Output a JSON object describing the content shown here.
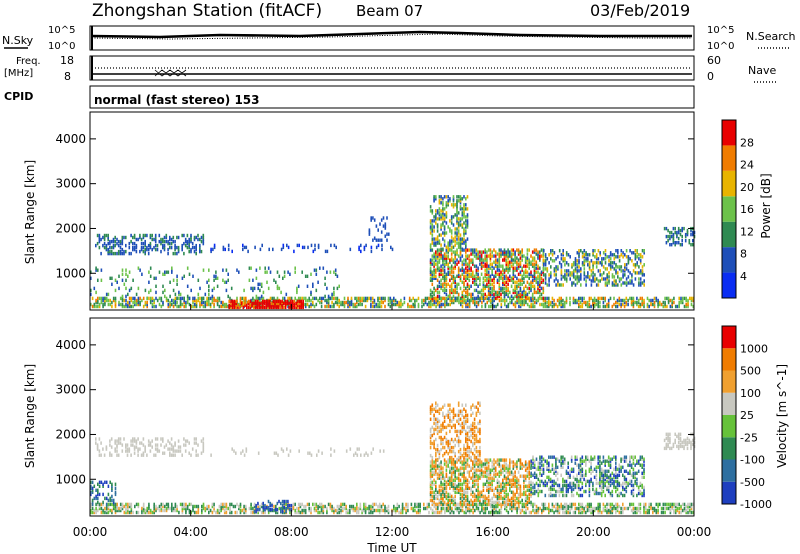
{
  "header": {
    "station": "Zhongshan Station (fitACF)",
    "beam": "Beam 07",
    "date": "03/Feb/2019"
  },
  "top_panels": {
    "sky_label": "N.Sky",
    "search_label": "N.Search",
    "sky_top": "10^5",
    "sky_bottom": "10^0",
    "search_top": "10^5",
    "search_bottom": "10^0",
    "freq_label_1": "Freq.",
    "freq_label_2": "[MHz]",
    "freq_top": "18",
    "freq_bottom": "8",
    "nave_label": "Nave",
    "nave_top": "60",
    "nave_bottom": "0",
    "cpid_label": "CPID",
    "cpid_value": "normal (fast stereo) 153"
  },
  "chart_data": [
    {
      "type": "heatmap",
      "ylabel": "Slant Range [km]",
      "xlabel": "",
      "y_ticks": [
        "1000",
        "2000",
        "3000",
        "4000"
      ],
      "colorbar_label": "Power [dB]",
      "colorbar_ticks": [
        "4",
        "8",
        "12",
        "16",
        "20",
        "24",
        "28"
      ],
      "colors": [
        "#0a2df2",
        "#1e4fb8",
        "#2f8a52",
        "#6cc24a",
        "#e8b400",
        "#f07c00",
        "#e80000"
      ]
    },
    {
      "type": "heatmap",
      "ylabel": "Slant Range [km]",
      "xlabel": "Time UT",
      "y_ticks": [
        "1000",
        "2000",
        "3000",
        "4000"
      ],
      "x_ticks": [
        "00:00",
        "04:00",
        "08:00",
        "12:00",
        "16:00",
        "20:00",
        "00:00"
      ],
      "colorbar_label": "Velocity [m s^-1]",
      "colorbar_ticks": [
        "1000",
        "500",
        "100",
        "25",
        "-25",
        "-100",
        "-500",
        "-1000"
      ],
      "colors": [
        "#1e3fbf",
        "#2e6fa0",
        "#2f8a52",
        "#66c23a",
        "#c8c8c0",
        "#f0a030",
        "#f07c00",
        "#e80000"
      ]
    }
  ]
}
